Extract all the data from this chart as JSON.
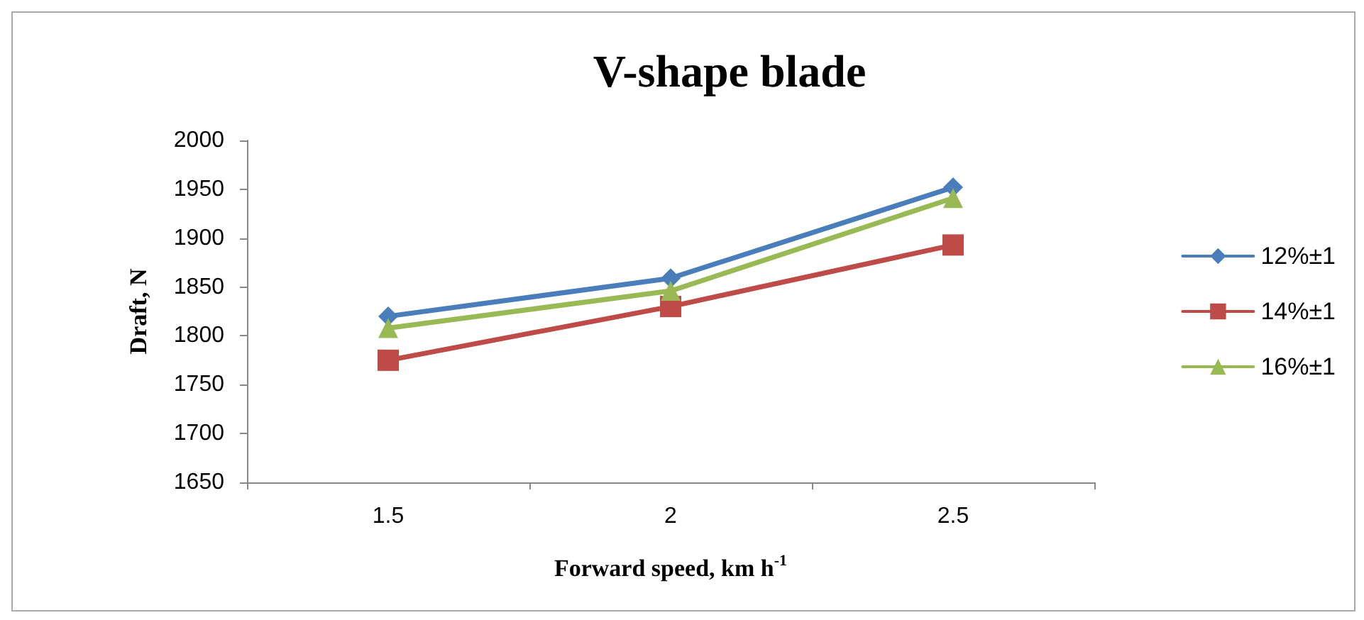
{
  "chart_data": {
    "type": "line",
    "title": "V-shape blade",
    "xlabel": "Forward speed, km h$^{-1}$",
    "ylabel": "Draft, N",
    "categories": [
      "1.5",
      "2",
      "2.5"
    ],
    "series": [
      {
        "name": "12%±1",
        "color": "#4a7ebb",
        "marker": "diamond",
        "values": [
          1820,
          1859,
          1952
        ]
      },
      {
        "name": "14%±1",
        "color": "#be4b48",
        "marker": "square",
        "values": [
          1775,
          1830,
          1893
        ]
      },
      {
        "name": "16%±1",
        "color": "#98b954",
        "marker": "triangle",
        "values": [
          1808,
          1846,
          1941
        ]
      }
    ],
    "ylim": [
      1650,
      2000
    ],
    "yticks": [
      1650,
      1700,
      1750,
      1800,
      1850,
      1900,
      1950,
      2000
    ],
    "grid": false,
    "legend": "right",
    "line_style": "solid"
  }
}
